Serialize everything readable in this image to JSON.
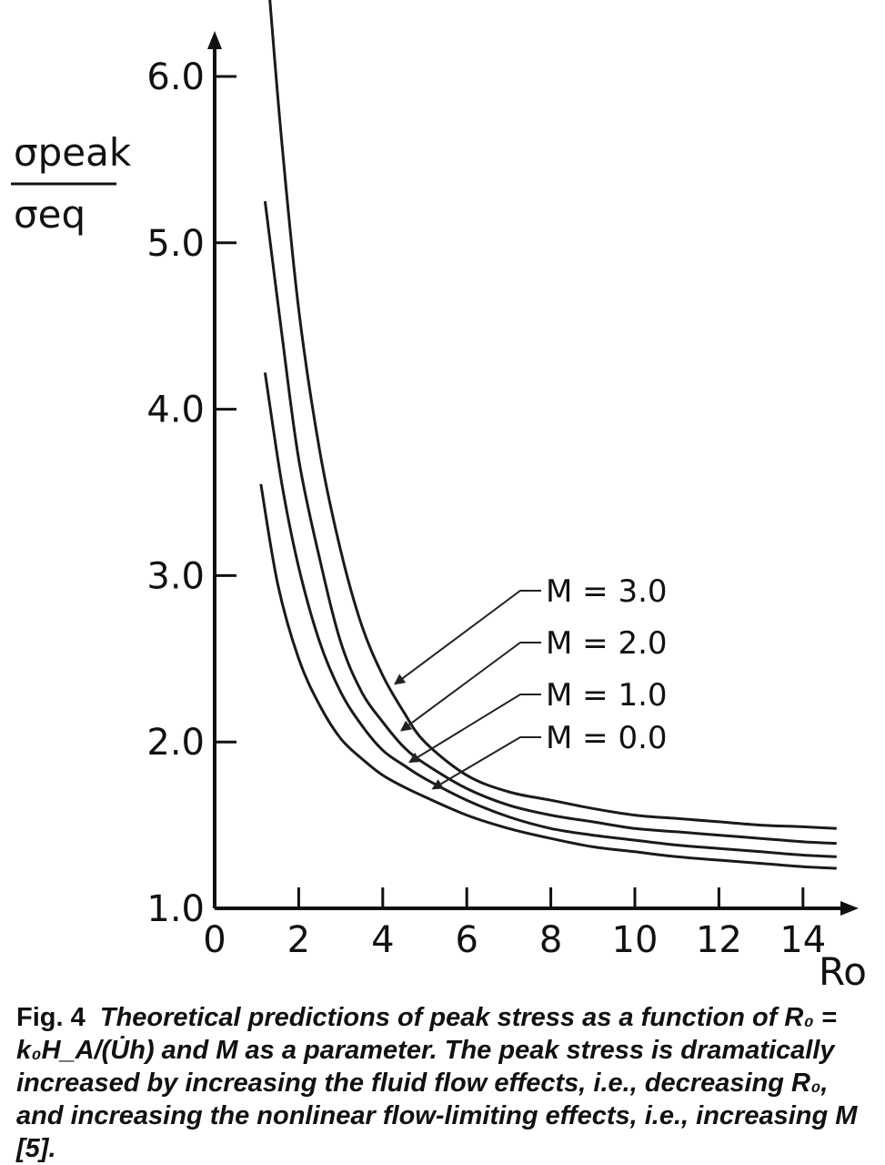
{
  "chart_data": {
    "type": "line",
    "xlabel": "Ro",
    "ylabel_numerator": "σpeak",
    "ylabel_denominator": "σeq",
    "xlim": [
      0,
      15
    ],
    "ylim": [
      1.0,
      6.5
    ],
    "x_ticks": [
      0,
      2,
      4,
      6,
      8,
      10,
      12,
      14
    ],
    "x_tick_labels": [
      "0",
      "2",
      "4",
      "6",
      "8",
      "10",
      "12",
      "14"
    ],
    "y_ticks": [
      1.0,
      2.0,
      3.0,
      4.0,
      5.0,
      6.0
    ],
    "y_tick_labels": [
      "1.0",
      "2.0",
      "3.0",
      "4.0",
      "5.0",
      "6.0"
    ],
    "grid": false,
    "series": [
      {
        "name": "M=3.0",
        "x": [
          1.3,
          1.6,
          2.0,
          2.5,
          3.0,
          3.5,
          4.0,
          4.5,
          5.0,
          6.0,
          7.0,
          8.0,
          9.0,
          10.0,
          11.0,
          12.0,
          13.0,
          14.0,
          14.8
        ],
        "y": [
          6.5,
          5.6,
          4.6,
          3.75,
          3.15,
          2.7,
          2.4,
          2.18,
          2.0,
          1.8,
          1.7,
          1.65,
          1.6,
          1.56,
          1.54,
          1.52,
          1.5,
          1.49,
          1.48
        ]
      },
      {
        "name": "M=2.0",
        "x": [
          1.2,
          1.6,
          2.0,
          2.5,
          3.0,
          3.5,
          4.0,
          4.5,
          5.0,
          6.0,
          7.0,
          8.0,
          9.0,
          10.0,
          11.0,
          12.0,
          13.0,
          14.0,
          14.8
        ],
        "y": [
          5.25,
          4.45,
          3.7,
          3.1,
          2.6,
          2.3,
          2.12,
          1.97,
          1.87,
          1.72,
          1.62,
          1.56,
          1.52,
          1.48,
          1.46,
          1.44,
          1.42,
          1.4,
          1.39
        ]
      },
      {
        "name": "M=1.0",
        "x": [
          1.2,
          1.6,
          2.0,
          2.5,
          3.0,
          3.5,
          4.0,
          4.5,
          5.0,
          6.0,
          7.0,
          8.0,
          9.0,
          10.0,
          11.0,
          12.0,
          13.0,
          14.0,
          14.8
        ],
        "y": [
          4.22,
          3.55,
          3.05,
          2.6,
          2.3,
          2.1,
          1.95,
          1.86,
          1.78,
          1.65,
          1.55,
          1.48,
          1.44,
          1.41,
          1.38,
          1.36,
          1.34,
          1.32,
          1.31
        ]
      },
      {
        "name": "M=0.0",
        "x": [
          1.1,
          1.5,
          2.0,
          2.5,
          3.0,
          3.5,
          4.0,
          4.5,
          5.0,
          6.0,
          7.0,
          8.0,
          9.0,
          10.0,
          11.0,
          12.0,
          13.0,
          14.0,
          14.8
        ],
        "y": [
          3.55,
          2.95,
          2.5,
          2.22,
          2.02,
          1.9,
          1.8,
          1.73,
          1.67,
          1.56,
          1.48,
          1.42,
          1.37,
          1.34,
          1.31,
          1.29,
          1.27,
          1.25,
          1.24
        ]
      }
    ],
    "annotation_labels": [
      "M = 3.0",
      "M = 2.0",
      "M = 1.0",
      "M = 0.0"
    ],
    "annotation_targets": [
      {
        "x": 4.3,
        "y": 2.35
      },
      {
        "x": 4.45,
        "y": 2.07
      },
      {
        "x": 4.65,
        "y": 1.88
      },
      {
        "x": 5.2,
        "y": 1.72
      }
    ],
    "caption": {
      "number": "Fig. 4",
      "text": "Theoretical predictions of peak stress as a function of R₀ = k₀H_A/(U̇h) and M as a parameter. The peak stress is dramatically increased by increasing the fluid flow effects, i.e., decreasing R₀, and increasing the nonlinear flow-limiting effects, i.e., increasing M [5]."
    }
  }
}
